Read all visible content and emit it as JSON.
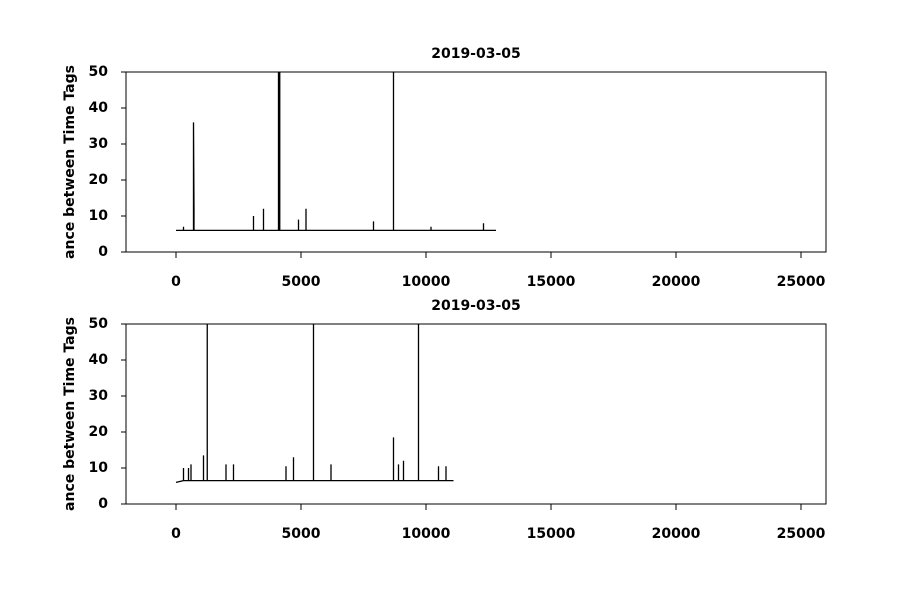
{
  "chart_data": [
    {
      "type": "line",
      "title": "2019-03-05",
      "ylabel": "ance between Time Tags",
      "xlim": [
        -2000,
        26000
      ],
      "xticks": [
        0,
        5000,
        10000,
        15000,
        20000,
        25000
      ],
      "ylim": [
        0,
        50
      ],
      "yticks": [
        0,
        10,
        20,
        30,
        40,
        50
      ],
      "x": [
        0,
        300,
        300,
        300,
        700,
        700,
        720,
        720,
        3100,
        3100,
        3100,
        3500,
        3500,
        3500,
        4100,
        4100,
        4150,
        4150,
        4900,
        4900,
        4900,
        5200,
        5200,
        5200,
        7900,
        7900,
        7900,
        8700,
        8700,
        8700,
        10200,
        10200,
        10200,
        12300,
        12300,
        12300,
        12800
      ],
      "values": [
        6,
        6,
        7,
        6,
        6,
        36,
        12,
        6,
        6,
        10,
        6,
        6,
        12,
        6,
        6,
        50,
        50,
        6,
        6,
        9,
        6,
        6,
        12,
        6,
        6,
        8.5,
        6,
        6,
        50,
        6,
        6,
        7,
        6,
        6,
        8,
        6,
        6
      ],
      "color": "#000000"
    },
    {
      "type": "line",
      "title": "2019-03-05",
      "ylabel": "ance between Time Tags",
      "xlim": [
        -2000,
        26000
      ],
      "xticks": [
        0,
        5000,
        10000,
        15000,
        20000,
        25000
      ],
      "ylim": [
        0,
        50
      ],
      "yticks": [
        0,
        10,
        20,
        30,
        40,
        50
      ],
      "x": [
        0,
        300,
        300,
        300,
        500,
        500,
        500,
        600,
        600,
        600,
        1100,
        1100,
        1100,
        1250,
        1250,
        1250,
        2000,
        2000,
        2000,
        2300,
        2300,
        2300,
        4400,
        4400,
        4400,
        4700,
        4700,
        4700,
        5500,
        5500,
        5500,
        6200,
        6200,
        6200,
        8700,
        8700,
        8700,
        8900,
        8900,
        8900,
        9100,
        9100,
        9100,
        9700,
        9700,
        9700,
        10500,
        10500,
        10500,
        10800,
        10800,
        10800,
        11100
      ],
      "values": [
        6,
        6.5,
        10,
        6.5,
        6.5,
        10,
        6.5,
        6.5,
        11,
        6.5,
        6.5,
        13.5,
        6.5,
        6.5,
        50,
        6.5,
        6.5,
        11,
        6.5,
        6.5,
        11,
        6.5,
        6.5,
        10.5,
        6.5,
        6.5,
        13,
        6.5,
        6.5,
        50,
        6.5,
        6.5,
        11,
        6.5,
        6.5,
        18.5,
        6.5,
        6.5,
        11,
        6.5,
        6.5,
        12,
        6.5,
        6.5,
        50,
        6.5,
        6.5,
        10.5,
        6.5,
        6.5,
        10.5,
        6.5,
        6.5
      ],
      "color": "#000000"
    }
  ]
}
